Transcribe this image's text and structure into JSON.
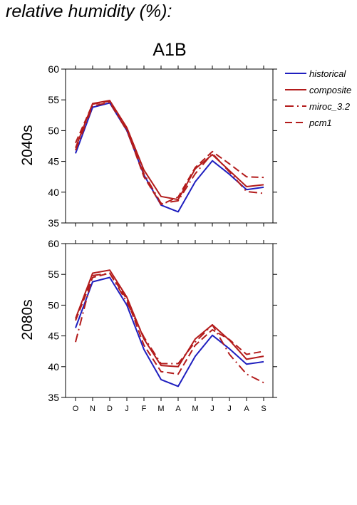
{
  "heading": "relative humidity (%):",
  "scenario": "A1B",
  "legend": [
    {
      "name": "historical",
      "color": "#1f1fbf",
      "dash": "solid"
    },
    {
      "name": "composite",
      "color": "#b31b1b",
      "dash": "solid"
    },
    {
      "name": "miroc_3.2",
      "color": "#b31b1b",
      "dash": "dashdot"
    },
    {
      "name": "pcm1",
      "color": "#b31b1b",
      "dash": "dashed"
    }
  ],
  "chart_data": [
    {
      "type": "line",
      "panel_label": "2040s",
      "categories": [
        "O",
        "N",
        "D",
        "J",
        "F",
        "M",
        "A",
        "M",
        "J",
        "J",
        "A",
        "S"
      ],
      "ylim": [
        35,
        60
      ],
      "yticks": [
        35,
        40,
        45,
        50,
        55,
        60
      ],
      "grid": false,
      "series": [
        {
          "name": "historical",
          "values": [
            46.3,
            53.8,
            54.5,
            50.0,
            42.8,
            37.9,
            36.8,
            41.7,
            45.1,
            42.9,
            40.4,
            40.8
          ]
        },
        {
          "name": "composite",
          "values": [
            47.2,
            54.4,
            54.9,
            50.5,
            43.6,
            39.3,
            38.8,
            43.8,
            46.1,
            43.5,
            40.9,
            41.2
          ]
        },
        {
          "name": "miroc_3.2",
          "values": [
            46.8,
            54.0,
            54.6,
            50.0,
            43.0,
            38.2,
            38.6,
            43.0,
            46.3,
            43.3,
            40.1,
            39.8
          ]
        },
        {
          "name": "pcm1",
          "values": [
            48.0,
            54.3,
            54.8,
            50.2,
            42.5,
            38.0,
            39.2,
            44.0,
            46.6,
            44.6,
            42.5,
            42.4
          ]
        }
      ]
    },
    {
      "type": "line",
      "panel_label": "2080s",
      "categories": [
        "O",
        "N",
        "D",
        "J",
        "F",
        "M",
        "A",
        "M",
        "J",
        "J",
        "A",
        "S"
      ],
      "ylim": [
        35,
        60
      ],
      "yticks": [
        35,
        40,
        45,
        50,
        55,
        60
      ],
      "grid": false,
      "series": [
        {
          "name": "historical",
          "values": [
            46.3,
            53.8,
            54.5,
            50.0,
            42.8,
            37.9,
            36.8,
            41.7,
            45.1,
            42.9,
            40.4,
            40.8
          ]
        },
        {
          "name": "composite",
          "values": [
            47.8,
            55.2,
            55.7,
            51.3,
            44.5,
            40.2,
            40.0,
            44.5,
            46.8,
            44.3,
            41.2,
            41.7
          ]
        },
        {
          "name": "miroc_3.2",
          "values": [
            44.0,
            54.8,
            55.2,
            50.5,
            44.8,
            40.5,
            40.5,
            44.0,
            46.8,
            42.0,
            38.8,
            37.4
          ]
        },
        {
          "name": "pcm1",
          "values": [
            47.5,
            54.5,
            55.2,
            51.0,
            43.5,
            39.2,
            38.8,
            43.5,
            46.0,
            44.4,
            42.0,
            42.5
          ]
        }
      ]
    }
  ]
}
